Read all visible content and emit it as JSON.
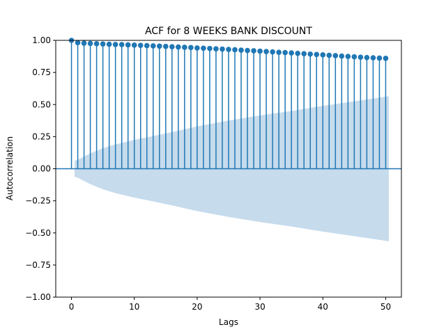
{
  "chart_data": {
    "type": "scatter",
    "title": "ACF for 8 WEEKS BANK DISCOUNT",
    "xlabel": "Lags",
    "ylabel": "Autocorrelation",
    "xlim": [
      -2.5,
      52.5
    ],
    "ylim": [
      -1.0,
      1.0
    ],
    "x_ticks": [
      0,
      10,
      20,
      30,
      40,
      50
    ],
    "y_ticks": [
      -1.0,
      -0.75,
      -0.5,
      -0.25,
      0.0,
      0.25,
      0.5,
      0.75,
      1.0
    ],
    "y_tick_labels": [
      "−1.00",
      "−0.75",
      "−0.50",
      "−0.25",
      "0.00",
      "0.25",
      "0.50",
      "0.75",
      "1.00"
    ],
    "x_tick_labels": [
      "0",
      "10",
      "20",
      "30",
      "40",
      "50"
    ],
    "grid": false,
    "colors": {
      "stem": "#1f77b4",
      "band": "#c6dbec",
      "zero_line": "#1f77b4"
    },
    "series": [
      {
        "x": [
          0,
          1,
          2,
          3,
          4,
          5,
          6,
          7,
          8,
          9,
          10,
          11,
          12,
          13,
          14,
          15,
          16,
          17,
          18,
          19,
          20,
          21,
          22,
          23,
          24,
          25,
          26,
          27,
          28,
          29,
          30,
          31,
          32,
          33,
          34,
          35,
          36,
          37,
          38,
          39,
          40,
          41,
          42,
          43,
          44,
          45,
          46,
          47,
          48,
          49,
          50
        ],
        "values": [
          1.0,
          0.982,
          0.978,
          0.976,
          0.974,
          0.972,
          0.97,
          0.968,
          0.967,
          0.965,
          0.963,
          0.961,
          0.959,
          0.957,
          0.955,
          0.953,
          0.95,
          0.948,
          0.946,
          0.944,
          0.941,
          0.939,
          0.937,
          0.934,
          0.932,
          0.929,
          0.927,
          0.924,
          0.921,
          0.919,
          0.916,
          0.913,
          0.91,
          0.907,
          0.905,
          0.902,
          0.899,
          0.896,
          0.893,
          0.89,
          0.887,
          0.884,
          0.881,
          0.878,
          0.875,
          0.872,
          0.869,
          0.866,
          0.864,
          0.862,
          0.86
        ]
      }
    ],
    "confidence_band": {
      "x": [
        0.5,
        1,
        2,
        3,
        5,
        7,
        10,
        13,
        16,
        20,
        25,
        30,
        35,
        40,
        45,
        50.5
      ],
      "upper": [
        0.062,
        0.07,
        0.095,
        0.12,
        0.16,
        0.19,
        0.225,
        0.255,
        0.285,
        0.33,
        0.375,
        0.415,
        0.45,
        0.49,
        0.525,
        0.565
      ],
      "lower": [
        -0.062,
        -0.07,
        -0.095,
        -0.12,
        -0.16,
        -0.19,
        -0.225,
        -0.255,
        -0.285,
        -0.33,
        -0.375,
        -0.415,
        -0.45,
        -0.49,
        -0.525,
        -0.565
      ]
    }
  }
}
